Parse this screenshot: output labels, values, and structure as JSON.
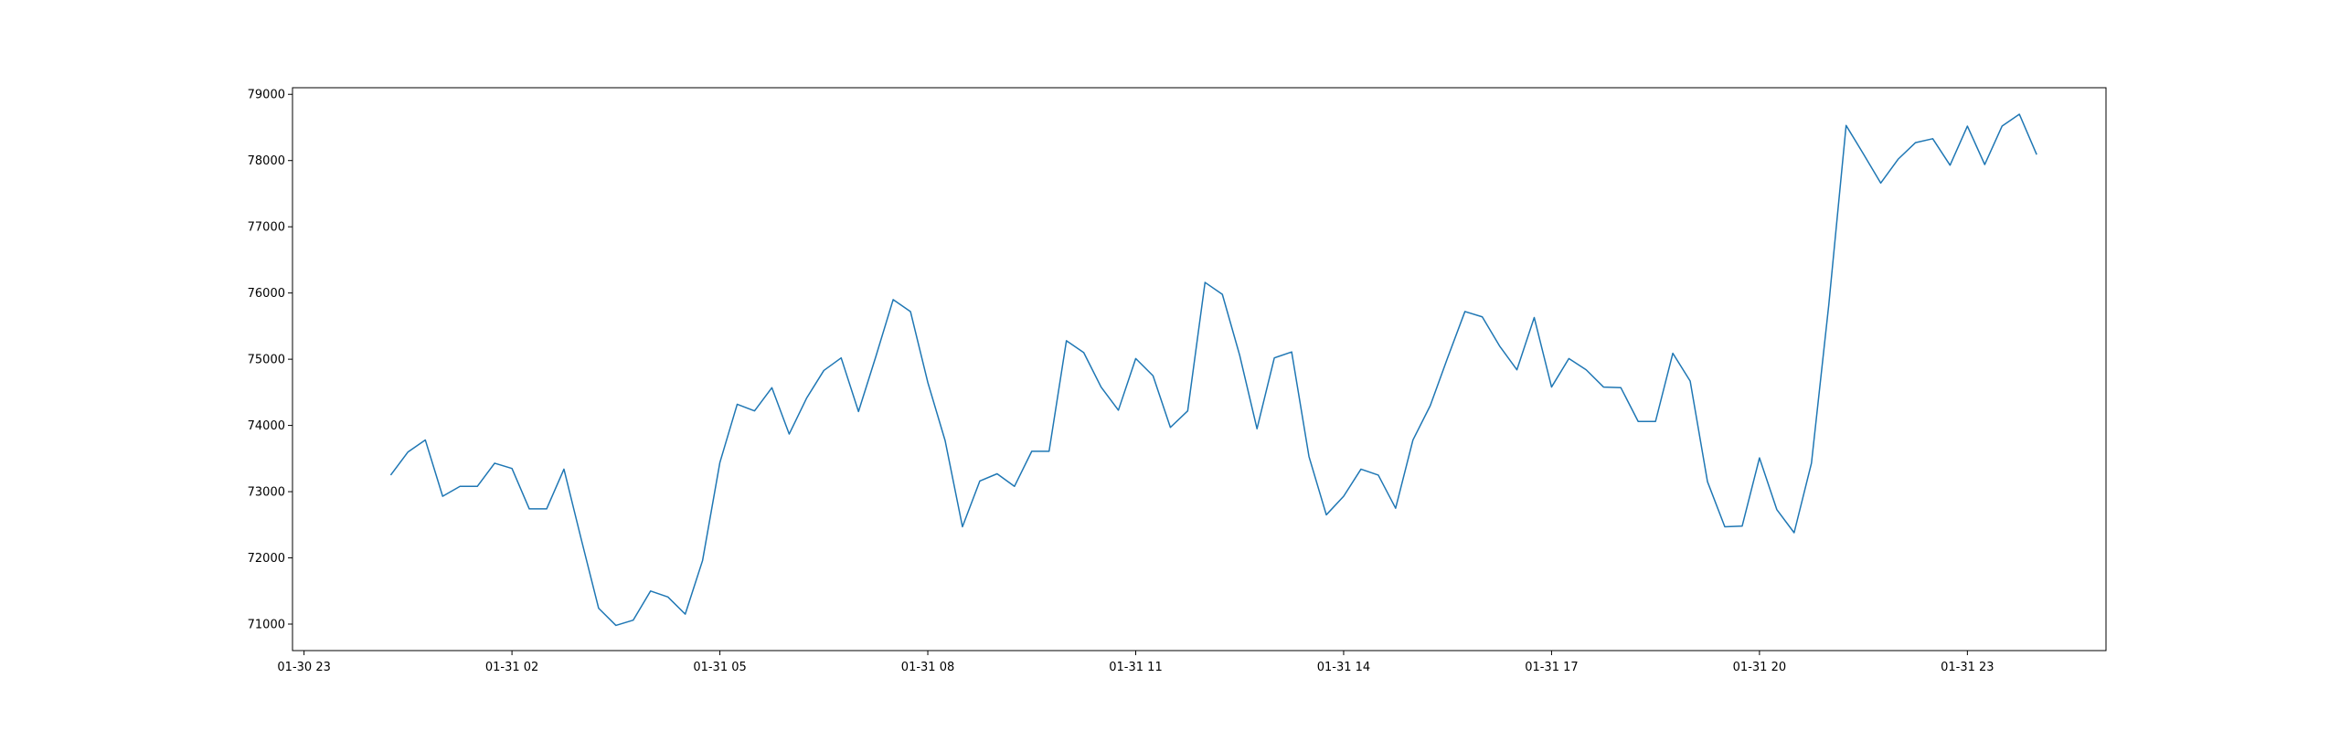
{
  "chart_data": {
    "type": "line",
    "title": "",
    "xlabel": "",
    "ylabel": "",
    "x_start": "01-31 00:15",
    "x_step_minutes": 15,
    "series": [
      {
        "color": "#1f77b4",
        "values": [
          73250,
          73600,
          73780,
          72930,
          73080,
          73080,
          73430,
          73350,
          72740,
          72740,
          73340,
          72280,
          71240,
          70980,
          71060,
          71500,
          71410,
          71150,
          71960,
          73440,
          74320,
          74220,
          74570,
          73870,
          74410,
          74830,
          75020,
          74210,
          75040,
          75900,
          75720,
          74650,
          73770,
          72470,
          73160,
          73270,
          73080,
          73610,
          73610,
          75280,
          75100,
          74580,
          74230,
          75010,
          74750,
          73970,
          74220,
          76160,
          75980,
          75060,
          73950,
          75020,
          75110,
          73530,
          72650,
          72930,
          73340,
          73250,
          72750,
          73780,
          74300,
          75020,
          75720,
          75640,
          75200,
          74840,
          75630,
          74580,
          75010,
          74840,
          74580,
          74570,
          74060,
          74060,
          75090,
          74670,
          73150,
          72470,
          72480,
          73510,
          72730,
          72380,
          73430,
          75820,
          78530,
          78100,
          77660,
          78020,
          78270,
          78330,
          77930,
          78520,
          77940,
          78520,
          78700,
          78090
        ]
      }
    ],
    "x_ticks": [
      "01-30 23",
      "01-31 02",
      "01-31 05",
      "01-31 08",
      "01-31 11",
      "01-31 14",
      "01-31 17",
      "01-31 20",
      "01-31 23"
    ],
    "y_ticks": [
      71000,
      72000,
      73000,
      74000,
      75000,
      76000,
      77000,
      78000,
      79000
    ],
    "x_range": [
      "01-30 22:50",
      "02-01 01:00"
    ],
    "ylim": [
      70600,
      79100
    ],
    "grid": false,
    "legend": false
  }
}
